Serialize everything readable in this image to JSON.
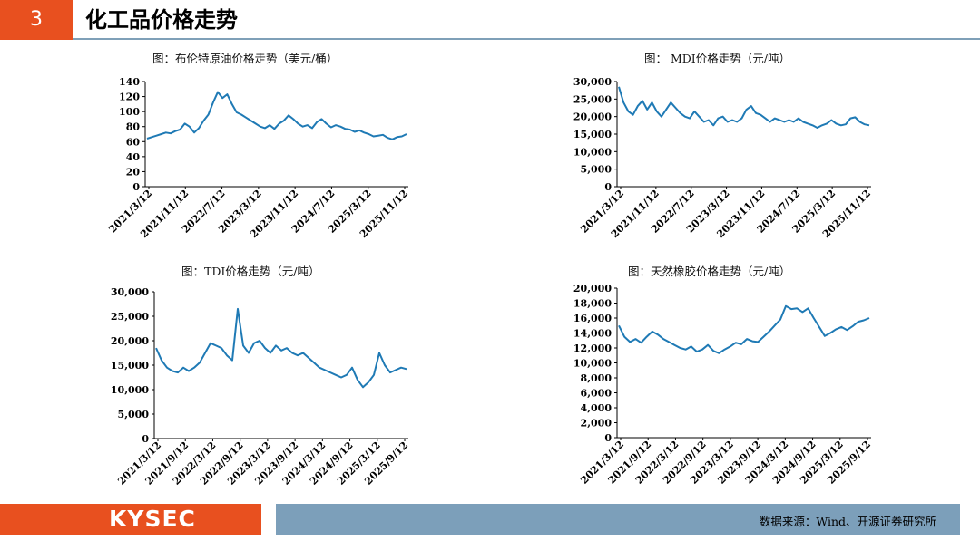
{
  "header": {
    "number": "3",
    "title": "化工品价格走势"
  },
  "footer": {
    "logo": "KYSEC",
    "source": "数据来源：Wind、开源证券研究所"
  },
  "colors": {
    "accent": "#e8501f",
    "series": "#1f7ab5",
    "bar": "#7c9fba"
  },
  "chart_data": [
    {
      "type": "line",
      "title": "图：布伦特原油价格走势（美元/桶）",
      "y_ticks": [
        "0",
        "20",
        "40",
        "60",
        "80",
        "100",
        "120",
        "140"
      ],
      "ylim": [
        0,
        140
      ],
      "x_ticks": [
        "2021/3/12",
        "2021/11/12",
        "2022/7/12",
        "2023/3/12",
        "2023/11/12",
        "2024/7/12",
        "2025/3/12",
        "2025/11/12"
      ],
      "series": [
        {
          "values": [
            64,
            66,
            68,
            70,
            72,
            71,
            74,
            76,
            84,
            80,
            72,
            78,
            88,
            96,
            112,
            126,
            118,
            123,
            110,
            99,
            96,
            92,
            88,
            84,
            80,
            78,
            82,
            77,
            84,
            88,
            95,
            90,
            84,
            80,
            82,
            78,
            86,
            90,
            84,
            79,
            82,
            80,
            77,
            76,
            73,
            75,
            72,
            70,
            67,
            68,
            69,
            65,
            63,
            66,
            67,
            70
          ]
        }
      ],
      "grid": false
    },
    {
      "type": "line",
      "title": "图：  MDI价格走势（元/吨）",
      "y_ticks": [
        "0",
        "5,000",
        "10,000",
        "15,000",
        "20,000",
        "25,000",
        "30,000"
      ],
      "ylim": [
        0,
        30000
      ],
      "x_ticks": [
        "2021/3/12",
        "2021/11/12",
        "2022/7/12",
        "2023/3/12",
        "2023/11/12",
        "2024/7/12",
        "2025/3/12",
        "2025/11/12"
      ],
      "series": [
        {
          "values": [
            28500,
            24000,
            21500,
            20500,
            23000,
            24500,
            22000,
            24000,
            21500,
            20000,
            22000,
            24000,
            22500,
            21000,
            20000,
            19500,
            21500,
            20000,
            18500,
            19000,
            17500,
            19500,
            20000,
            18500,
            19000,
            18500,
            19500,
            22000,
            23000,
            21000,
            20500,
            19500,
            18500,
            19500,
            19000,
            18500,
            19000,
            18500,
            19500,
            18500,
            18000,
            17500,
            16800,
            17500,
            18000,
            19000,
            18000,
            17500,
            17800,
            19500,
            19800,
            18500,
            17800,
            17500
          ]
        }
      ],
      "grid": false
    },
    {
      "type": "line",
      "title": "图：TDI价格走势（元/吨）",
      "y_ticks": [
        "0",
        "5,000",
        "10,000",
        "15,000",
        "20,000",
        "25,000",
        "30,000"
      ],
      "ylim": [
        0,
        30000
      ],
      "x_ticks": [
        "2021/3/12",
        "2021/9/12",
        "2022/3/12",
        "2022/9/12",
        "2023/3/12",
        "2023/9/12",
        "2024/3/12",
        "2024/9/12",
        "2025/3/12",
        "2025/9/12"
      ],
      "series": [
        {
          "values": [
            18500,
            16000,
            14500,
            13800,
            13500,
            14500,
            13800,
            14500,
            15500,
            17500,
            19500,
            19000,
            18500,
            17000,
            16000,
            26500,
            19000,
            17500,
            19500,
            20000,
            18500,
            17500,
            19000,
            18000,
            18500,
            17500,
            17000,
            17500,
            16500,
            15500,
            14500,
            14000,
            13500,
            13000,
            12500,
            13000,
            14500,
            12000,
            10500,
            11500,
            13000,
            17500,
            15000,
            13500,
            14000,
            14500,
            14200
          ]
        }
      ],
      "grid": false
    },
    {
      "type": "line",
      "title": "图：天然橡胶价格走势（元/吨）",
      "y_ticks": [
        "0",
        "2,000",
        "4,000",
        "6,000",
        "8,000",
        "10,000",
        "12,000",
        "14,000",
        "16,000",
        "18,000",
        "20,000"
      ],
      "ylim": [
        0,
        20000
      ],
      "x_ticks": [
        "2021/3/12",
        "2021/9/12",
        "2022/3/12",
        "2022/9/12",
        "2023/3/12",
        "2023/9/12",
        "2024/3/12",
        "2024/9/12",
        "2025/3/12",
        "2025/9/12"
      ],
      "series": [
        {
          "values": [
            15000,
            13500,
            12800,
            13200,
            12700,
            13500,
            14200,
            13800,
            13200,
            12800,
            12400,
            12000,
            11800,
            12200,
            11500,
            11800,
            12400,
            11600,
            11300,
            11800,
            12200,
            12700,
            12500,
            13200,
            12900,
            12800,
            13500,
            14200,
            15000,
            15800,
            17600,
            17200,
            17300,
            16800,
            17300,
            16000,
            14800,
            13600,
            14000,
            14500,
            14800,
            14400,
            14900,
            15500,
            15700,
            16000
          ]
        }
      ],
      "grid": false
    }
  ]
}
